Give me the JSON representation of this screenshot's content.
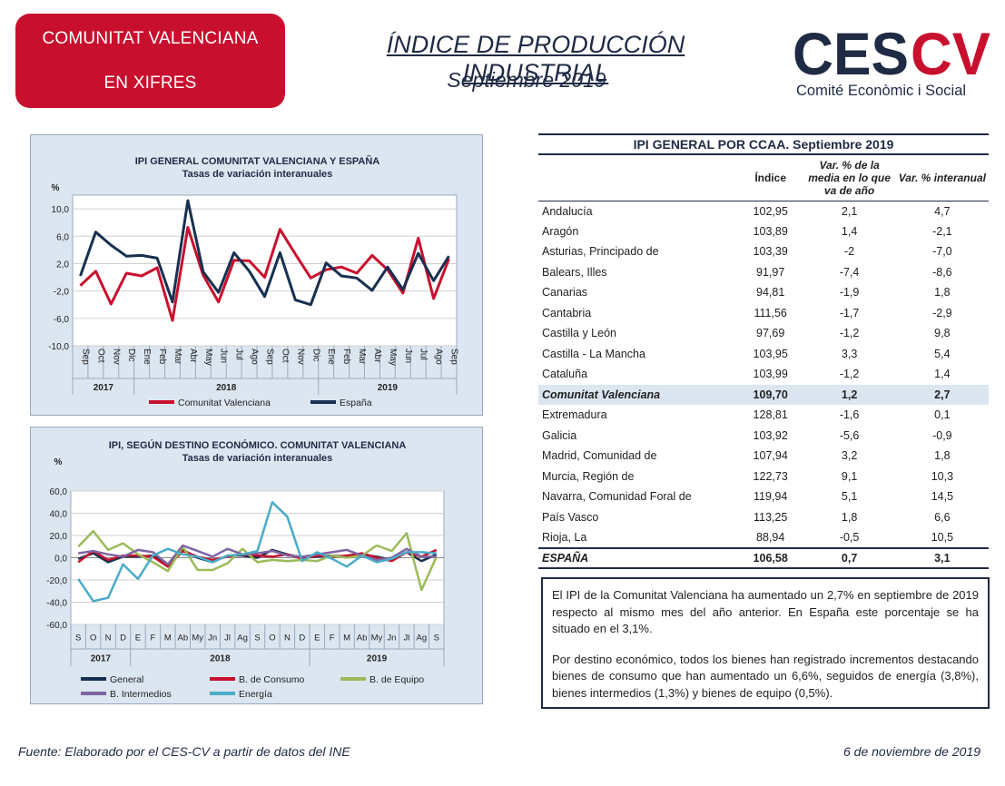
{
  "header": {
    "badge_line1": "COMUNITAT VALENCIANA",
    "badge_line2": "EN XIFRES",
    "title": "ÍNDICE DE PRODUCCIÓN INDUSTRIAL",
    "subtitle": "Septiembre 2019",
    "logo_text": "CESCV",
    "logo_subtext": "Comité Econòmic i Social"
  },
  "colors": {
    "brand_red": "#c8102e",
    "navy": "#1f2a44",
    "panel_bg": "#dce6f1",
    "valenciana": "#c8102e",
    "espana": "#17304f",
    "general": "#17304f",
    "consumo": "#c8102e",
    "equipo": "#9bbb59",
    "intermedios": "#8064a2",
    "energia": "#4bacc6"
  },
  "chart_data": [
    {
      "type": "line",
      "title": "IPI GENERAL COMUNITAT VALENCIANA Y ESPAÑA",
      "subtitle": "Tasas de variación interanuales",
      "ylabel": "%",
      "ylim": [
        -10,
        12
      ],
      "yticks": [
        10.0,
        6.0,
        2.0,
        -2.0,
        -6.0,
        -10.0
      ],
      "ytick_labels": [
        "10,0",
        "6,0",
        "2,0",
        "-2,0",
        "-6,0",
        "-10,0"
      ],
      "grid": true,
      "legend": "bottom",
      "categories": [
        "Sep",
        "Oct",
        "Nov",
        "Dic",
        "Ene",
        "Feb",
        "Mar",
        "Abr",
        "May",
        "Jun",
        "Jul",
        "Ago",
        "Sep",
        "Oct",
        "Nov",
        "Dic",
        "Ene",
        "Feb",
        "Mar",
        "Abr",
        "May",
        "Jun",
        "Jul",
        "Ago",
        "Sep"
      ],
      "year_groups": [
        {
          "label": "2017",
          "count": 4
        },
        {
          "label": "2018",
          "count": 12
        },
        {
          "label": "2019",
          "count": 9
        }
      ],
      "series": [
        {
          "name": "Comunitat Valenciana",
          "values": [
            -1.2,
            0.9,
            -3.9,
            0.6,
            0.2,
            1.4,
            -6.3,
            7.3,
            0.3,
            -3.6,
            2.5,
            2.4,
            0.0,
            7.0,
            3.4,
            -0.1,
            1.1,
            1.5,
            0.6,
            3.2,
            1.1,
            -2.3,
            5.7,
            -3.1,
            2.7
          ]
        },
        {
          "name": "España",
          "values": [
            0.2,
            6.6,
            4.7,
            3.1,
            3.2,
            2.8,
            -3.6,
            11.2,
            0.8,
            -2.2,
            3.6,
            0.9,
            -2.8,
            3.6,
            -3.3,
            -4.0,
            2.1,
            0.2,
            -0.1,
            -1.9,
            1.5,
            -1.8,
            3.5,
            -0.5,
            3.1
          ]
        }
      ]
    },
    {
      "type": "line",
      "title": "IPI, SEGÚN DESTINO ECONÓMICO. COMUNITAT VALENCIANA",
      "subtitle": "Tasas de variación interanuales",
      "ylabel": "%",
      "ylim": [
        -60,
        60
      ],
      "yticks": [
        60,
        40,
        20,
        0,
        -20,
        -40,
        -60
      ],
      "ytick_labels": [
        "60,0",
        "40,0",
        "20,0",
        "0,0",
        "-20,0",
        "-40,0",
        "-60,0"
      ],
      "grid": true,
      "legend": "bottom",
      "categories": [
        "S",
        "O",
        "N",
        "D",
        "E",
        "F",
        "M",
        "Ab",
        "My",
        "Jn",
        "Jl",
        "Ag",
        "S",
        "O",
        "N",
        "D",
        "E",
        "F",
        "M",
        "Ab",
        "My",
        "Jn",
        "Jl",
        "Ag",
        "S"
      ],
      "year_groups": [
        {
          "label": "2017",
          "count": 4
        },
        {
          "label": "2018",
          "count": 12
        },
        {
          "label": "2019",
          "count": 9
        }
      ],
      "series": [
        {
          "name": "General",
          "values": [
            -1,
            4,
            -4,
            1,
            1,
            2,
            -6,
            7,
            0,
            -4,
            2,
            2,
            0,
            7,
            3,
            0,
            1,
            2,
            1,
            3,
            1,
            -2,
            5,
            -3,
            3
          ]
        },
        {
          "name": "B. de Consumo",
          "values": [
            -4,
            6,
            -2,
            2,
            2,
            1,
            -8,
            6,
            1,
            -2,
            1,
            3,
            2,
            1,
            3,
            -1,
            2,
            1,
            2,
            4,
            0,
            -3,
            5,
            1,
            7
          ]
        },
        {
          "name": "B. de Equipo",
          "values": [
            10,
            24,
            7,
            13,
            3,
            -4,
            -12,
            10,
            -11,
            -11,
            -5,
            8,
            -4,
            -2,
            -3,
            -2,
            -3,
            2,
            0,
            2,
            11,
            6,
            22,
            -29,
            1
          ]
        },
        {
          "name": "B. Intermedios",
          "values": [
            4,
            6,
            3,
            1,
            7,
            5,
            -6,
            11,
            6,
            1,
            8,
            3,
            4,
            6,
            2,
            1,
            3,
            5,
            7,
            2,
            -2,
            0,
            8,
            1,
            1
          ]
        },
        {
          "name": "Energía",
          "values": [
            -19,
            -39,
            -36,
            -6,
            -19,
            2,
            8,
            3,
            1,
            -4,
            2,
            3,
            6,
            50,
            37,
            -3,
            5,
            -1,
            -8,
            2,
            -4,
            -1,
            5,
            5,
            4
          ]
        }
      ]
    }
  ],
  "table": {
    "title": "IPI GENERAL POR CCAA. Septiembre 2019",
    "columns": [
      "",
      "Índice",
      "Var. % de la media en lo que va de año",
      "Var. % interanual"
    ],
    "rows": [
      [
        "Andalucía",
        "102,95",
        "2,1",
        "4,7"
      ],
      [
        "Aragón",
        "103,89",
        "1,4",
        "-2,1"
      ],
      [
        "Asturias, Principado de",
        "103,39",
        "-2",
        "-7,0"
      ],
      [
        "Balears, Illes",
        "91,97",
        "-7,4",
        "-8,6"
      ],
      [
        "Canarias",
        "94,81",
        "-1,9",
        "1,8"
      ],
      [
        "Cantabria",
        "111,56",
        "-1,7",
        "-2,9"
      ],
      [
        "Castilla y León",
        "97,69",
        "-1,2",
        "9,8"
      ],
      [
        "Castilla - La Mancha",
        "103,95",
        "3,3",
        "5,4"
      ],
      [
        "Cataluña",
        "103,99",
        "-1,2",
        "1,4"
      ],
      [
        "Comunitat Valenciana",
        "109,70",
        "1,2",
        "2,7"
      ],
      [
        "Extremadura",
        "128,81",
        "-1,6",
        "0,1"
      ],
      [
        "Galicia",
        "103,92",
        "-5,6",
        "-0,9"
      ],
      [
        "Madrid, Comunidad de",
        "107,94",
        "3,2",
        "1,8"
      ],
      [
        "Murcia, Región de",
        "122,73",
        "9,1",
        "10,3"
      ],
      [
        "Navarra, Comunidad Foral de",
        "119,94",
        "5,1",
        "14,5"
      ],
      [
        "País Vasco",
        "113,25",
        "1,8",
        "6,6"
      ],
      [
        "Rioja, La",
        "88,94",
        "-0,5",
        "10,5"
      ],
      [
        "ESPAÑA",
        "106,58",
        "0,7",
        "3,1"
      ]
    ]
  },
  "summary": {
    "p1": "El IPI de la Comunitat Valenciana ha aumentado un 2,7% en septiembre de 2019 respecto al mismo mes del año anterior. En España este porcentaje se ha situado en el 3,1%.",
    "p2": "Por destino económico, todos los bienes han registrado incrementos destacando bienes de consumo que han aumentado un 6,6%, seguidos de energía (3,8%), bienes intermedios (1,3%) y bienes de equipo (0,5%)."
  },
  "footer": {
    "source": "Fuente: Elaborado por el CES-CV a partir de datos del INE",
    "date": "6 de noviembre de 2019"
  }
}
